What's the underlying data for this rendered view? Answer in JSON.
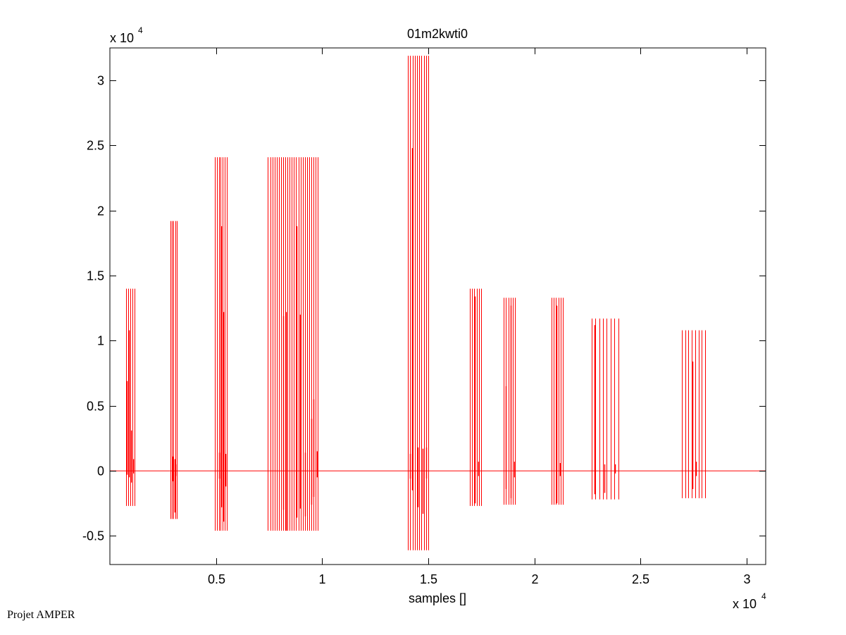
{
  "chart_data": {
    "type": "line",
    "title": "01m2kwti0",
    "xlabel": "samples []",
    "ylabel": "",
    "x_exponent_label": "x 10",
    "x_exponent_power": "4",
    "y_exponent_label": "x 10",
    "y_exponent_power": "4",
    "xlim": [
      0,
      30900
    ],
    "ylim": [
      -7200,
      32500
    ],
    "xticks": [
      5000,
      10000,
      15000,
      20000,
      25000,
      30000
    ],
    "xtick_labels": [
      "0.5",
      "1",
      "1.5",
      "2",
      "2.5",
      "3"
    ],
    "yticks": [
      -5000,
      0,
      5000,
      10000,
      15000,
      20000,
      25000,
      30000
    ],
    "ytick_labels": [
      "-0.5",
      "0",
      "0.5",
      "1",
      "1.5",
      "2",
      "2.5",
      "3"
    ],
    "grid": false,
    "line_color": "#ff0000",
    "series": [
      {
        "bursts": [
          {
            "x0": 750,
            "x1": 1150,
            "n": 5,
            "ymax": 14000,
            "ymin": -2700,
            "inner": [
              [
                900,
                10800,
                -500
              ],
              [
                800,
                6900,
                -300
              ],
              [
                1000,
                3100,
                -900
              ],
              [
                1100,
                900,
                -200
              ]
            ]
          },
          {
            "x0": 2850,
            "x1": 3150,
            "n": 5,
            "ymax": 19200,
            "ymin": -3700,
            "inner": [
              [
                2950,
                1100,
                -800
              ],
              [
                3050,
                900,
                -3200
              ],
              [
                3100,
                500,
                -400
              ]
            ]
          },
          {
            "x0": 4950,
            "x1": 5500,
            "n": 7,
            "ymax": 24100,
            "ymin": -4600,
            "inner": [
              [
                5250,
                18800,
                -2800
              ],
              [
                5350,
                12200,
                -3900
              ],
              [
                5450,
                1300,
                -1200
              ],
              [
                5150,
                1400,
                -600
              ]
            ]
          },
          {
            "x0": 7450,
            "x1": 9800,
            "n": 24,
            "ymax": 24100,
            "ymin": -4600,
            "inner": [
              [
                8150,
                11900,
                -3000
              ],
              [
                8300,
                12200,
                -4600
              ],
              [
                8800,
                18800,
                -3600
              ],
              [
                8950,
                12000,
                -2900
              ],
              [
                9200,
                1400,
                -3500
              ],
              [
                9500,
                4000,
                -2600
              ],
              [
                9600,
                5500,
                -2000
              ],
              [
                9750,
                1500,
                -500
              ]
            ]
          },
          {
            "x0": 14050,
            "x1": 15000,
            "n": 10,
            "ymax": 31900,
            "ymin": -6100,
            "inner": [
              [
                14250,
                24800,
                -1500
              ],
              [
                14500,
                1800,
                -2800
              ],
              [
                14750,
                1700,
                -3300
              ],
              [
                14150,
                1300,
                -600
              ],
              [
                14900,
                1800,
                -600
              ]
            ]
          },
          {
            "x0": 16950,
            "x1": 17500,
            "n": 6,
            "ymax": 14000,
            "ymin": -2700,
            "inner": [
              [
                17200,
                13400,
                -2500
              ],
              [
                17350,
                700,
                -400
              ]
            ]
          },
          {
            "x0": 18550,
            "x1": 19100,
            "n": 6,
            "ymax": 13300,
            "ymin": -2600,
            "inner": [
              [
                18650,
                6500,
                -1400
              ],
              [
                18900,
                12700,
                -2100
              ],
              [
                19050,
                700,
                -500
              ]
            ]
          },
          {
            "x0": 20800,
            "x1": 21350,
            "n": 6,
            "ymax": 13300,
            "ymin": -2600,
            "inner": [
              [
                21050,
                12700,
                -2500
              ],
              [
                21200,
                600,
                -400
              ]
            ]
          },
          {
            "x0": 22700,
            "x1": 23950,
            "n": 8,
            "ymax": 11700,
            "ymin": -2200,
            "inner": [
              [
                22850,
                11200,
                -1800
              ],
              [
                23300,
                500,
                -1700
              ],
              [
                23800,
                500,
                -200
              ]
            ]
          },
          {
            "x0": 26950,
            "x1": 28050,
            "n": 8,
            "ymax": 10800,
            "ymin": -2100,
            "inner": [
              [
                27450,
                8400,
                -1400
              ],
              [
                27600,
                700,
                -400
              ]
            ]
          }
        ]
      }
    ]
  },
  "footer": "Projet AMPER"
}
